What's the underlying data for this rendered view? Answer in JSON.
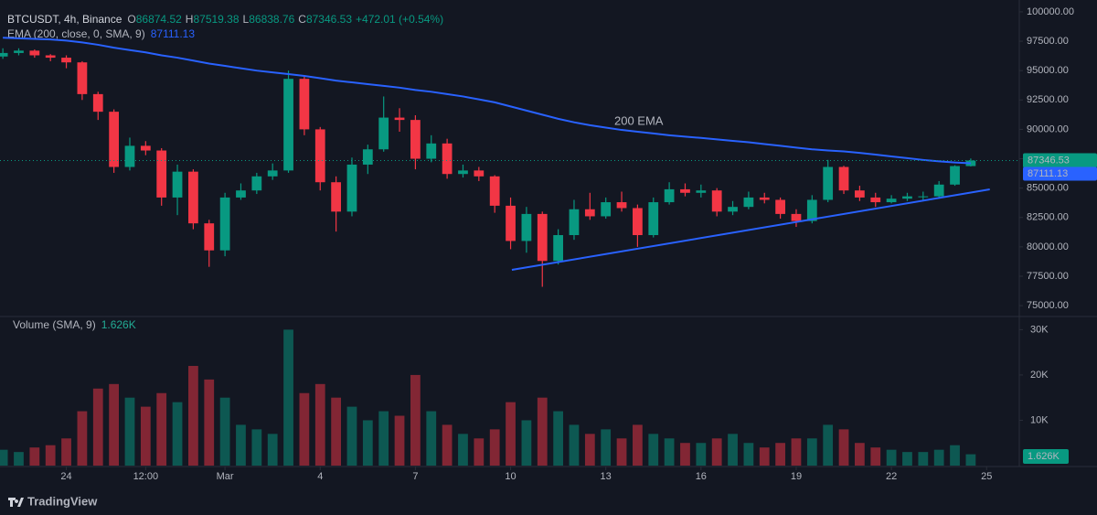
{
  "header": {
    "symbol": "BTCUSDT, 4h, Binance",
    "ohlc_letters": [
      "O",
      "H",
      "L",
      "C"
    ],
    "change": "+472.01 (+0.54%)",
    "volume_sma": "1.626K"
  },
  "branding": "TradingView",
  "chart_data": {
    "type": "candlestick",
    "up_color": "#089981",
    "down_color": "#f23645",
    "x": [
      -2,
      -1.5,
      -1,
      -0.5,
      0,
      0.5,
      1,
      1.5,
      2,
      2.5,
      3,
      3.5,
      4,
      4.5,
      5,
      5.5,
      6,
      6.5,
      7,
      7.5,
      8,
      8.5,
      9,
      9.5,
      10,
      10.5,
      11,
      11.5,
      12,
      12.5,
      13,
      13.5,
      14,
      14.5,
      15,
      15.5,
      16,
      16.5,
      17,
      17.5,
      18,
      18.5,
      19,
      19.5,
      20,
      20.5,
      21,
      21.5,
      22,
      22.5,
      23,
      23.5,
      24,
      24.5,
      25,
      25.5,
      26,
      26.5,
      27,
      27.5,
      28,
      28.5
    ],
    "open": [
      96200,
      96500,
      96700,
      96300,
      96100,
      95700,
      93000,
      91500,
      86800,
      88600,
      88200,
      84200,
      86400,
      82000,
      79700,
      84200,
      84800,
      86000,
      86500,
      94300,
      90000,
      85500,
      83000,
      87000,
      88300,
      91000,
      90800,
      87500,
      88800,
      86200,
      86500,
      86000,
      83500,
      80500,
      82800,
      78800,
      81000,
      83200,
      82600,
      83800,
      83300,
      81000,
      83800,
      84900,
      84600,
      84800,
      83000,
      83400,
      84200,
      84000,
      82800,
      82200,
      84000,
      86800,
      84800,
      84200,
      83800,
      84100,
      84300,
      84300,
      85300,
      86874.52
    ],
    "high": [
      96900,
      96900,
      96800,
      96400,
      96300,
      95800,
      93200,
      91700,
      89300,
      89000,
      88400,
      87000,
      86600,
      82300,
      84600,
      85400,
      86300,
      87100,
      95000,
      94500,
      90200,
      86000,
      87600,
      88700,
      92800,
      91800,
      91200,
      89500,
      89200,
      87000,
      86800,
      86100,
      84200,
      83400,
      83000,
      81500,
      84000,
      84600,
      84200,
      84700,
      83600,
      84200,
      85500,
      85400,
      85300,
      85000,
      83900,
      84700,
      84600,
      84200,
      83200,
      84400,
      87400,
      86900,
      85200,
      84600,
      84400,
      84600,
      84700,
      85600,
      86950,
      87519.38
    ],
    "low": [
      96000,
      96300,
      96100,
      95800,
      95200,
      92500,
      90800,
      86300,
      86500,
      87800,
      83500,
      82700,
      81500,
      78300,
      79200,
      84000,
      84500,
      85700,
      86300,
      89500,
      84800,
      81300,
      82600,
      86200,
      88100,
      89800,
      86600,
      87200,
      85800,
      85900,
      85600,
      82900,
      79800,
      79500,
      76600,
      78500,
      80600,
      82300,
      82400,
      83000,
      80000,
      80800,
      83600,
      84300,
      84200,
      82600,
      82700,
      83200,
      83700,
      82400,
      81700,
      82000,
      83800,
      84500,
      83900,
      83400,
      83700,
      83900,
      84000,
      84100,
      85200,
      86838.76
    ],
    "close": [
      96500,
      96700,
      96300,
      96100,
      95700,
      93000,
      91500,
      86800,
      88600,
      88200,
      84200,
      86400,
      82000,
      79700,
      84200,
      84800,
      86000,
      86500,
      94300,
      90000,
      85500,
      83000,
      87000,
      88300,
      91000,
      90800,
      87500,
      88800,
      86200,
      86500,
      86000,
      83500,
      80500,
      82800,
      78800,
      81000,
      83200,
      82600,
      83800,
      83300,
      81000,
      83800,
      84900,
      84600,
      84800,
      83000,
      83400,
      84200,
      84000,
      82800,
      82200,
      84000,
      86800,
      84800,
      84200,
      83800,
      84100,
      84300,
      84300,
      85300,
      86874.52,
      87346.53
    ],
    "ylim": [
      74150,
      100620
    ],
    "yticks": [
      {
        "value": 75000,
        "label": "75000.00"
      },
      {
        "value": 77500,
        "label": "77500.00"
      },
      {
        "value": 80000,
        "label": "80000.00"
      },
      {
        "value": 82500,
        "label": "82500.00"
      },
      {
        "value": 85000,
        "label": "85000.00"
      },
      {
        "value": 87500,
        "label": "87500.00"
      },
      {
        "value": 90000,
        "label": "90000.00"
      },
      {
        "value": 92500,
        "label": "92500.00"
      },
      {
        "value": 95000,
        "label": "95000.00"
      },
      {
        "value": 97500,
        "label": "97500.00"
      },
      {
        "value": 100000,
        "label": "100000.00"
      }
    ],
    "xlim": [
      -2.09,
      30.03
    ],
    "xticks": [
      {
        "value": 0,
        "label": "24"
      },
      {
        "value": 2.5,
        "label": "12:00"
      },
      {
        "value": 5,
        "label": "Mar"
      },
      {
        "value": 8,
        "label": "4"
      },
      {
        "value": 11,
        "label": "7"
      },
      {
        "value": 14,
        "label": "10"
      },
      {
        "value": 17,
        "label": "13"
      },
      {
        "value": 20,
        "label": "16"
      },
      {
        "value": 23,
        "label": "19"
      },
      {
        "value": 26,
        "label": "22"
      },
      {
        "value": 29,
        "label": "25"
      }
    ],
    "ema": {
      "name": "EMA (200, close, 0, SMA, 9)",
      "color": "#2962ff",
      "values": [
        97800,
        97750,
        97700,
        97650,
        97550,
        97400,
        97200,
        96950,
        96750,
        96550,
        96300,
        96100,
        95850,
        95600,
        95400,
        95200,
        95000,
        94850,
        94700,
        94550,
        94350,
        94150,
        94000,
        93850,
        93700,
        93550,
        93350,
        93200,
        93000,
        92800,
        92550,
        92300,
        91950,
        91600,
        91250,
        90900,
        90600,
        90350,
        90150,
        89950,
        89800,
        89650,
        89500,
        89380,
        89270,
        89150,
        89020,
        88900,
        88750,
        88600,
        88450,
        88300,
        88200,
        88120,
        88000,
        87850,
        87700,
        87550,
        87400,
        87280,
        87180,
        87111.13
      ]
    },
    "volume": {
      "name": "Volume (SMA, 9)",
      "values": [
        3500,
        3000,
        4000,
        4500,
        6000,
        12000,
        17000,
        18000,
        15000,
        13000,
        16000,
        14000,
        22000,
        19000,
        15000,
        9000,
        8000,
        7000,
        30000,
        16000,
        18000,
        15000,
        13000,
        10000,
        12000,
        11000,
        20000,
        12000,
        9000,
        7000,
        6000,
        8000,
        14000,
        10000,
        15000,
        12000,
        9000,
        7000,
        8000,
        6000,
        9000,
        7000,
        6000,
        5000,
        5000,
        6000,
        7000,
        5000,
        4000,
        5000,
        6000,
        6000,
        9000,
        8000,
        5000,
        4000,
        3500,
        3000,
        3000,
        3500,
        4500,
        2500
      ],
      "ylim": [
        0,
        32500
      ],
      "yticks": [
        {
          "value": 10000,
          "label": "10K"
        },
        {
          "value": 20000,
          "label": "20K"
        },
        {
          "value": 30000,
          "label": "30K"
        }
      ]
    },
    "trendline": {
      "color": "#2962ff",
      "x": [
        14.04,
        29.1
      ],
      "y": [
        78040,
        84890
      ]
    },
    "annotation": "200 EMA"
  }
}
